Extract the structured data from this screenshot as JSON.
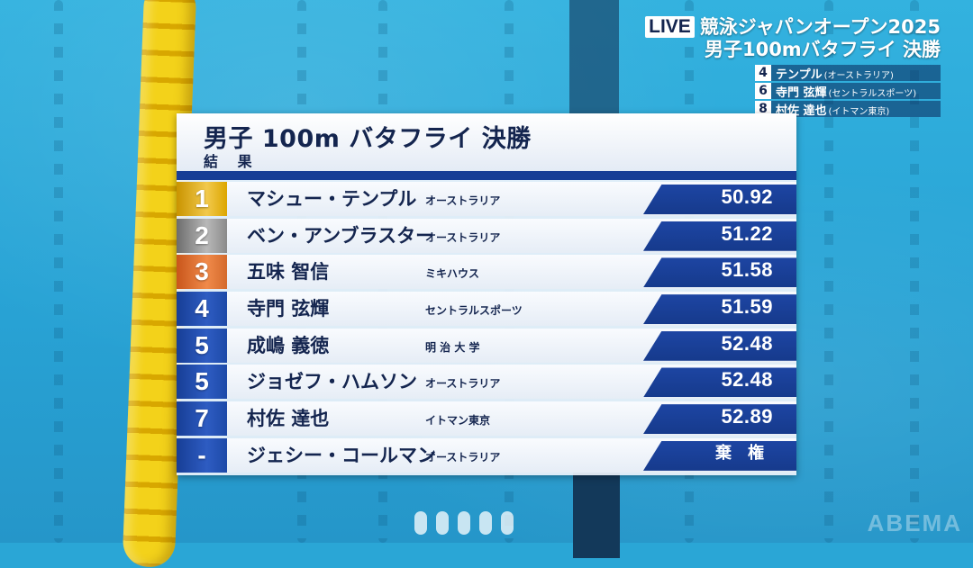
{
  "live": {
    "badge": "LIVE",
    "event_title": "競泳ジャパンオープン2025",
    "event_subtitle": "男子100mバタフライ 決勝",
    "lanes": [
      {
        "lane": "4",
        "name": "テンプル",
        "team": "(オーストラリア)"
      },
      {
        "lane": "6",
        "name": "寺門 弦輝",
        "team": "(セントラルスポーツ)"
      },
      {
        "lane": "8",
        "name": "村佐 達也",
        "team": "(イトマン東京)"
      }
    ]
  },
  "board": {
    "title": "男子 100m バタフライ 決勝",
    "subtitle": "結 果",
    "results": [
      {
        "rank": "1",
        "medal": "gold",
        "name": "マシュー・テンプル",
        "team": "オーストラリア",
        "time": "50.92"
      },
      {
        "rank": "2",
        "medal": "silver",
        "name": "ベン・アンブラスター",
        "team": "オーストラリア",
        "time": "51.22"
      },
      {
        "rank": "3",
        "medal": "bronze",
        "name": "五味 智信",
        "team": "ミキハウス",
        "time": "51.58"
      },
      {
        "rank": "4",
        "medal": "blue",
        "name": "寺門 弦輝",
        "team": "セントラルスポーツ",
        "time": "51.59"
      },
      {
        "rank": "5",
        "medal": "blue",
        "name": "成嶋 義徳",
        "team": "明 治 大 学",
        "time": "52.48"
      },
      {
        "rank": "5",
        "medal": "blue",
        "name": "ジョゼフ・ハムソン",
        "team": "オーストラリア",
        "time": "52.48"
      },
      {
        "rank": "7",
        "medal": "blue",
        "name": "村佐 達也",
        "team": "イトマン東京",
        "time": "52.89"
      },
      {
        "rank": "-",
        "medal": "blue",
        "name": "ジェシー・コールマン",
        "team": "オーストラリア",
        "time": "棄権"
      }
    ]
  },
  "watermark": "ABEMA",
  "colors": {
    "navy": "#14254f",
    "accent_blue": "#173e96",
    "gold": "#f2c94c",
    "silver": "#b8b8b8",
    "bronze": "#f08a4a",
    "pool": "#2aa6d6"
  }
}
